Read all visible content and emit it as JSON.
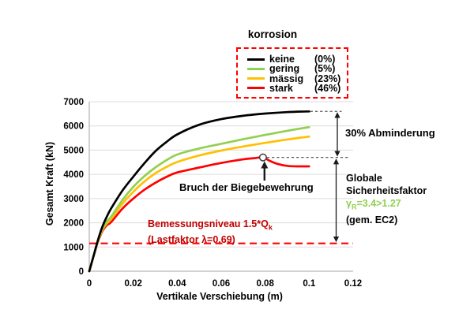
{
  "chart_data": {
    "type": "line",
    "xlabel": "Vertikale Verschiebung (m)",
    "ylabel": "Gesamt Kraft (kN)",
    "xlim": [
      0,
      0.12
    ],
    "ylim": [
      0,
      7000
    ],
    "x_ticks": [
      0,
      0.02,
      0.04,
      0.06,
      0.08,
      0.1,
      0.12
    ],
    "x_tick_labels": [
      "0",
      "0.02",
      "0.04",
      "0.06",
      "0.08",
      "0.1",
      "0.12"
    ],
    "y_ticks": [
      0,
      1000,
      2000,
      3000,
      4000,
      5000,
      6000,
      7000
    ],
    "y_tick_labels": [
      "0",
      "1000",
      "2000",
      "3000",
      "4000",
      "5000",
      "6000",
      "7000"
    ],
    "grid": "horizontal",
    "legend": {
      "title": "korrosion",
      "position": "top",
      "border": "red-dashed"
    },
    "series": [
      {
        "name": "keine",
        "pct": "(0%)",
        "color": "#000000",
        "points": [
          [
            0,
            0
          ],
          [
            0.002,
            650
          ],
          [
            0.004,
            1300
          ],
          [
            0.006,
            1850
          ],
          [
            0.008,
            2260
          ],
          [
            0.01,
            2600
          ],
          [
            0.015,
            3320
          ],
          [
            0.02,
            3900
          ],
          [
            0.025,
            4450
          ],
          [
            0.03,
            4950
          ],
          [
            0.035,
            5330
          ],
          [
            0.04,
            5650
          ],
          [
            0.05,
            6050
          ],
          [
            0.06,
            6280
          ],
          [
            0.07,
            6420
          ],
          [
            0.08,
            6510
          ],
          [
            0.09,
            6570
          ],
          [
            0.1,
            6600
          ]
        ]
      },
      {
        "name": "gering",
        "pct": "(5%)",
        "color": "#92d050",
        "points": [
          [
            0,
            0
          ],
          [
            0.002,
            640
          ],
          [
            0.004,
            1260
          ],
          [
            0.006,
            1760
          ],
          [
            0.008,
            2050
          ],
          [
            0.01,
            2260
          ],
          [
            0.015,
            2930
          ],
          [
            0.02,
            3480
          ],
          [
            0.025,
            3920
          ],
          [
            0.03,
            4280
          ],
          [
            0.035,
            4580
          ],
          [
            0.04,
            4820
          ],
          [
            0.05,
            5070
          ],
          [
            0.06,
            5260
          ],
          [
            0.07,
            5450
          ],
          [
            0.08,
            5630
          ],
          [
            0.09,
            5800
          ],
          [
            0.1,
            5950
          ]
        ]
      },
      {
        "name": "mässig",
        "pct": "(23%)",
        "color": "#ffc000",
        "points": [
          [
            0,
            0
          ],
          [
            0.002,
            635
          ],
          [
            0.004,
            1240
          ],
          [
            0.006,
            1710
          ],
          [
            0.008,
            1980
          ],
          [
            0.01,
            2160
          ],
          [
            0.015,
            2780
          ],
          [
            0.02,
            3280
          ],
          [
            0.025,
            3700
          ],
          [
            0.03,
            4040
          ],
          [
            0.035,
            4300
          ],
          [
            0.04,
            4510
          ],
          [
            0.05,
            4780
          ],
          [
            0.06,
            4980
          ],
          [
            0.07,
            5150
          ],
          [
            0.08,
            5300
          ],
          [
            0.09,
            5440
          ],
          [
            0.1,
            5560
          ]
        ]
      },
      {
        "name": "stark",
        "pct": "(46%)",
        "color": "#ff0000",
        "points": [
          [
            0,
            0
          ],
          [
            0.002,
            630
          ],
          [
            0.004,
            1220
          ],
          [
            0.006,
            1660
          ],
          [
            0.008,
            1900
          ],
          [
            0.01,
            2030
          ],
          [
            0.015,
            2580
          ],
          [
            0.02,
            3000
          ],
          [
            0.025,
            3360
          ],
          [
            0.03,
            3650
          ],
          [
            0.035,
            3890
          ],
          [
            0.04,
            4080
          ],
          [
            0.05,
            4280
          ],
          [
            0.06,
            4470
          ],
          [
            0.07,
            4620
          ],
          [
            0.075,
            4670
          ],
          [
            0.079,
            4700
          ],
          [
            0.082,
            4560
          ],
          [
            0.086,
            4420
          ],
          [
            0.091,
            4340
          ],
          [
            0.1,
            4330
          ]
        ],
        "marker": {
          "x": 0.079,
          "y": 4700,
          "style": "open-circle"
        }
      }
    ],
    "reference_lines": [
      {
        "name": "keine-max-level",
        "value": 6600,
        "style": "gray-dashed",
        "x_from": 0.1005,
        "x_to": 0.1148
      },
      {
        "name": "stark-failure-level",
        "value": 4700,
        "style": "gray-dashed",
        "x_from": 0.0808,
        "x_to": 0.118
      },
      {
        "name": "design-level",
        "value": 1150,
        "style": "red-dashed",
        "x_from": 0,
        "x_to": 0.12
      }
    ],
    "annotations": {
      "bruch": "Bruch der Biegebewehrung",
      "abminderung": "30% Abminderung",
      "globale_line1": "Globale",
      "globale_line2": "Sicherheitsfaktor",
      "gamma_symbol": "γ",
      "gamma_sub": "R",
      "gamma_rest": "=3.4>1.27",
      "gamma_color": "#92d050",
      "gem_ec2": "(gem. EC2)",
      "bemessung_main": "Bemessungsniveau 1.5*Q",
      "bemessung_sub": "k",
      "bemessung_line2": "(Lastfaktor λ=0.69)",
      "bemessung_color": "#c00000"
    },
    "colors": {
      "grid": "#dcdcdc",
      "axis": "#b7b7b7",
      "gray_dashed": "#595959",
      "red_dashed": "#ff0000",
      "arrow": "#1a1a1a"
    }
  }
}
